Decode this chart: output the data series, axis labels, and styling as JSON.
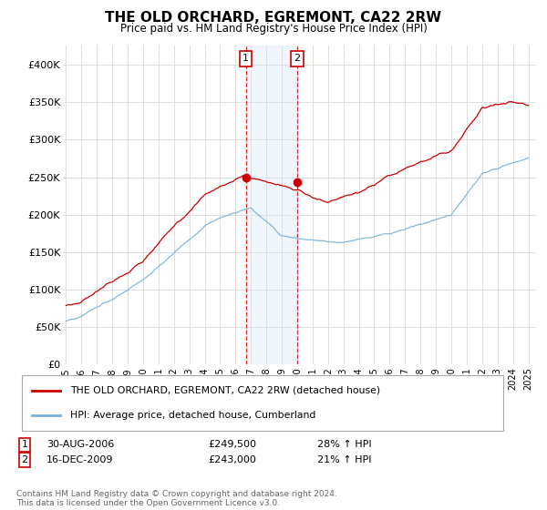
{
  "title": "THE OLD ORCHARD, EGREMONT, CA22 2RW",
  "subtitle": "Price paid vs. HM Land Registry's House Price Index (HPI)",
  "ylim": [
    0,
    420000
  ],
  "yticks": [
    0,
    50000,
    100000,
    150000,
    200000,
    250000,
    300000,
    350000,
    400000
  ],
  "ytick_labels": [
    "£0",
    "£50K",
    "£100K",
    "£150K",
    "£200K",
    "£250K",
    "£300K",
    "£350K",
    "£400K"
  ],
  "hpi_color": "#7ab0d8",
  "price_color": "#cc0000",
  "shade_color": "#d6e8f5",
  "transaction1_date": "30-AUG-2006",
  "transaction1_price": 249500,
  "transaction1_hpi_pct": "28%",
  "transaction2_date": "16-DEC-2009",
  "transaction2_price": 243000,
  "transaction2_hpi_pct": "21%",
  "legend_line1": "THE OLD ORCHARD, EGREMONT, CA22 2RW (detached house)",
  "legend_line2": "HPI: Average price, detached house, Cumberland",
  "footer": "Contains HM Land Registry data © Crown copyright and database right 2024.\nThis data is licensed under the Open Government Licence v3.0.",
  "x_start_year": 1995,
  "x_end_year": 2025
}
